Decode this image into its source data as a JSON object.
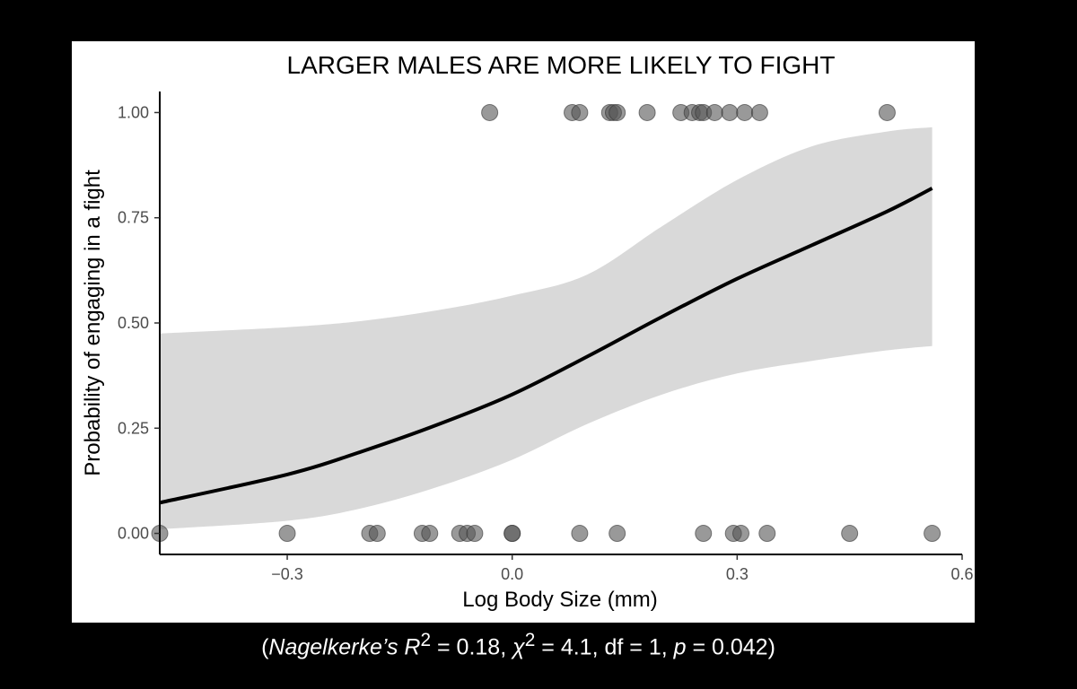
{
  "chart_data": {
    "type": "scatter",
    "title": "LARGER MALES ARE MORE LIKELY TO FIGHT",
    "xlabel": "Log Body Size (mm)",
    "ylabel": "Probability of engaging in a fight",
    "xlim": [
      -0.47,
      0.6
    ],
    "ylim": [
      -0.05,
      1.05
    ],
    "x_ticks": [
      -0.3,
      0.0,
      0.3,
      0.6
    ],
    "x_tick_labels": [
      "−0.3",
      "0.0",
      "0.3",
      "0.6"
    ],
    "y_ticks": [
      0.0,
      0.25,
      0.5,
      0.75,
      1.0
    ],
    "y_tick_labels": [
      "0.00",
      "0.25",
      "0.50",
      "0.75",
      "1.00"
    ],
    "grid": false,
    "legend": "none",
    "colors": {
      "points": "#555555",
      "line": "#000000",
      "band": "#d9d9d9"
    },
    "points": {
      "y1": [
        -0.03,
        0.08,
        0.09,
        0.13,
        0.135,
        0.14,
        0.18,
        0.225,
        0.24,
        0.25,
        0.255,
        0.27,
        0.29,
        0.31,
        0.33,
        0.5
      ],
      "y0": [
        -0.47,
        -0.3,
        -0.19,
        -0.18,
        -0.12,
        -0.11,
        -0.07,
        -0.06,
        -0.05,
        0.0,
        0.0,
        0.09,
        0.14,
        0.255,
        0.295,
        0.305,
        0.34,
        0.45,
        0.56
      ]
    },
    "fit": {
      "x": [
        -0.47,
        -0.3,
        -0.2,
        -0.1,
        0.0,
        0.1,
        0.2,
        0.3,
        0.4,
        0.5,
        0.56
      ],
      "y": [
        0.073,
        0.14,
        0.195,
        0.258,
        0.33,
        0.42,
        0.515,
        0.605,
        0.685,
        0.765,
        0.82
      ]
    },
    "ci": {
      "x": [
        -0.47,
        -0.3,
        -0.2,
        -0.1,
        0.0,
        0.1,
        0.2,
        0.3,
        0.4,
        0.5,
        0.56
      ],
      "lower": [
        0.01,
        0.03,
        0.06,
        0.11,
        0.175,
        0.26,
        0.33,
        0.38,
        0.41,
        0.435,
        0.445
      ],
      "upper": [
        0.475,
        0.49,
        0.505,
        0.53,
        0.565,
        0.615,
        0.73,
        0.84,
        0.92,
        0.955,
        0.965
      ]
    }
  },
  "caption": {
    "open": "(",
    "r2_label": "Nagelkerke’s R",
    "r2_sup": "2",
    "r2_value": " = 0.18, ",
    "chi_label": "χ",
    "chi_sup": "2",
    "chi_value": " = 4.1, df = 1, ",
    "p_label": "p",
    "p_value": " = 0.042)"
  }
}
